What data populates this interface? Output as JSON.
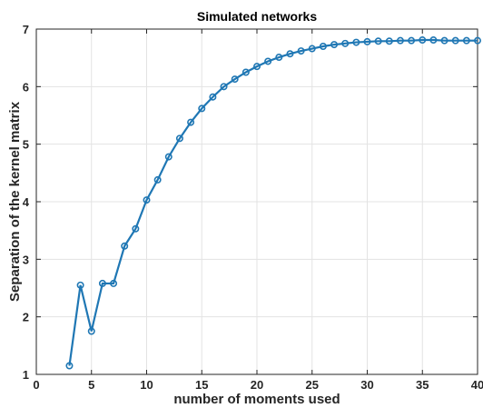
{
  "chart_data": {
    "type": "line",
    "title": "Simulated networks",
    "xlabel": "number of moments used",
    "ylabel": "Separation of the kernel matrix",
    "xlim": [
      0,
      40
    ],
    "ylim": [
      1,
      7
    ],
    "xticks": [
      0,
      5,
      10,
      15,
      20,
      25,
      30,
      35,
      40
    ],
    "yticks": [
      1,
      2,
      3,
      4,
      5,
      6,
      7
    ],
    "grid": true,
    "marker": "circle",
    "color": "#1f77b4",
    "series": [
      {
        "x": [
          3,
          4,
          5,
          6,
          7,
          8,
          9,
          10,
          11,
          12,
          13,
          14,
          15,
          16,
          17,
          18,
          19,
          20,
          21,
          22,
          23,
          24,
          25,
          26,
          27,
          28,
          29,
          30,
          31,
          32,
          33,
          34,
          35,
          36,
          37,
          38,
          39,
          40
        ],
        "values": [
          1.15,
          2.55,
          1.75,
          2.58,
          2.58,
          3.23,
          3.53,
          4.03,
          4.38,
          4.78,
          5.1,
          5.38,
          5.62,
          5.82,
          6.0,
          6.13,
          6.25,
          6.35,
          6.44,
          6.51,
          6.57,
          6.62,
          6.66,
          6.7,
          6.73,
          6.75,
          6.77,
          6.78,
          6.79,
          6.79,
          6.8,
          6.8,
          6.81,
          6.81,
          6.8,
          6.8,
          6.8,
          6.8
        ]
      }
    ]
  }
}
